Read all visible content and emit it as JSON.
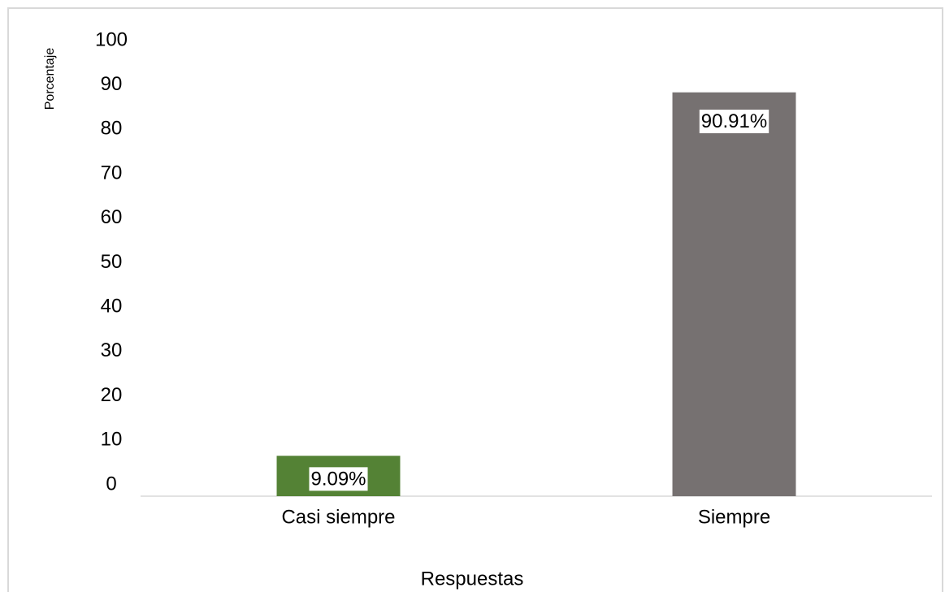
{
  "chart_data": {
    "type": "bar",
    "x_label": "Respuestas",
    "y_label": "Porcentaje",
    "categories": [
      "Casi siempre",
      "Siempre"
    ],
    "values": [
      9.09,
      90.91
    ],
    "value_labels": [
      "9.09%",
      "90.91%"
    ],
    "colors": [
      "#548235",
      "#767171"
    ],
    "ylim": [
      0,
      100
    ],
    "yticks": [
      0,
      10,
      20,
      30,
      40,
      50,
      60,
      70,
      80,
      90,
      100
    ],
    "grid": false
  }
}
